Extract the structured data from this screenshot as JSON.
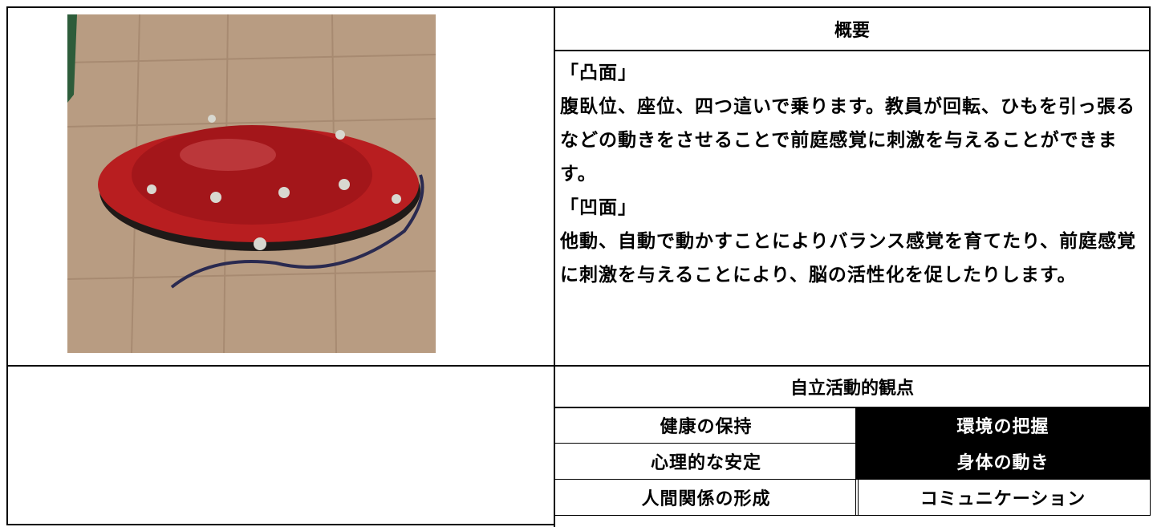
{
  "overview": {
    "title": "概要",
    "paragraphs": [
      "「凸面」",
      "腹臥位、座位、四つ這いで乗ります。教員が回転、ひもを引っ張るなどの動きをさせることで前庭感覚に刺激を与えることができます。",
      "「凹面」",
      "他動、自動で動かすことによりバランス感覚を育てたり、前庭感覚に刺激を与えることにより、脳の活性化を促したりします。"
    ]
  },
  "perspectives": {
    "title": "自立活動的観点",
    "items": [
      {
        "label": "健康の保持",
        "selected": false
      },
      {
        "label": "環境の把握",
        "selected": true
      },
      {
        "label": "心理的な安定",
        "selected": false
      },
      {
        "label": "身体の動き",
        "selected": true
      },
      {
        "label": "人間関係の形成",
        "selected": false
      },
      {
        "label": "コミュニケーション",
        "selected": false
      }
    ]
  }
}
